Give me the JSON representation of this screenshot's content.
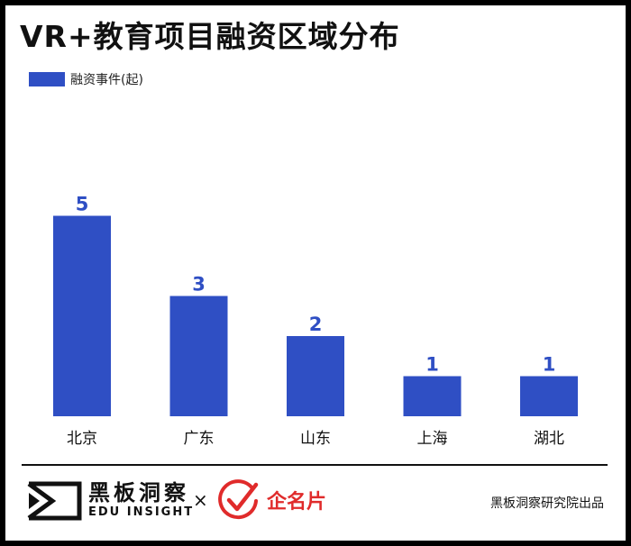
{
  "header": {
    "title": "VR+教育项目融资区域分布"
  },
  "colors": {
    "bar": "#2f4fc4",
    "value_label": "#2f4fc4",
    "partner": "#e02b2b"
  },
  "chart_data": {
    "type": "bar",
    "title": "VR+教育项目融资区域分布",
    "categories": [
      "北京",
      "广东",
      "山东",
      "上海",
      "湖北"
    ],
    "series": [
      {
        "name": "融资事件(起)",
        "values": [
          5,
          3,
          2,
          1,
          1
        ]
      }
    ],
    "ylim": [
      0,
      5
    ],
    "grid": false,
    "legend": "top-left",
    "data_labels": true
  },
  "footer": {
    "brand_cn": "黑板洞察",
    "brand_en": "EDU INSIGHT",
    "brand_logo_icon": "play-bracket-logo-icon",
    "separator": "×",
    "partner_logo_icon": "red-checkmark-circle-icon",
    "partner_name": "企名片",
    "source": "黑板洞察研究院出品"
  }
}
